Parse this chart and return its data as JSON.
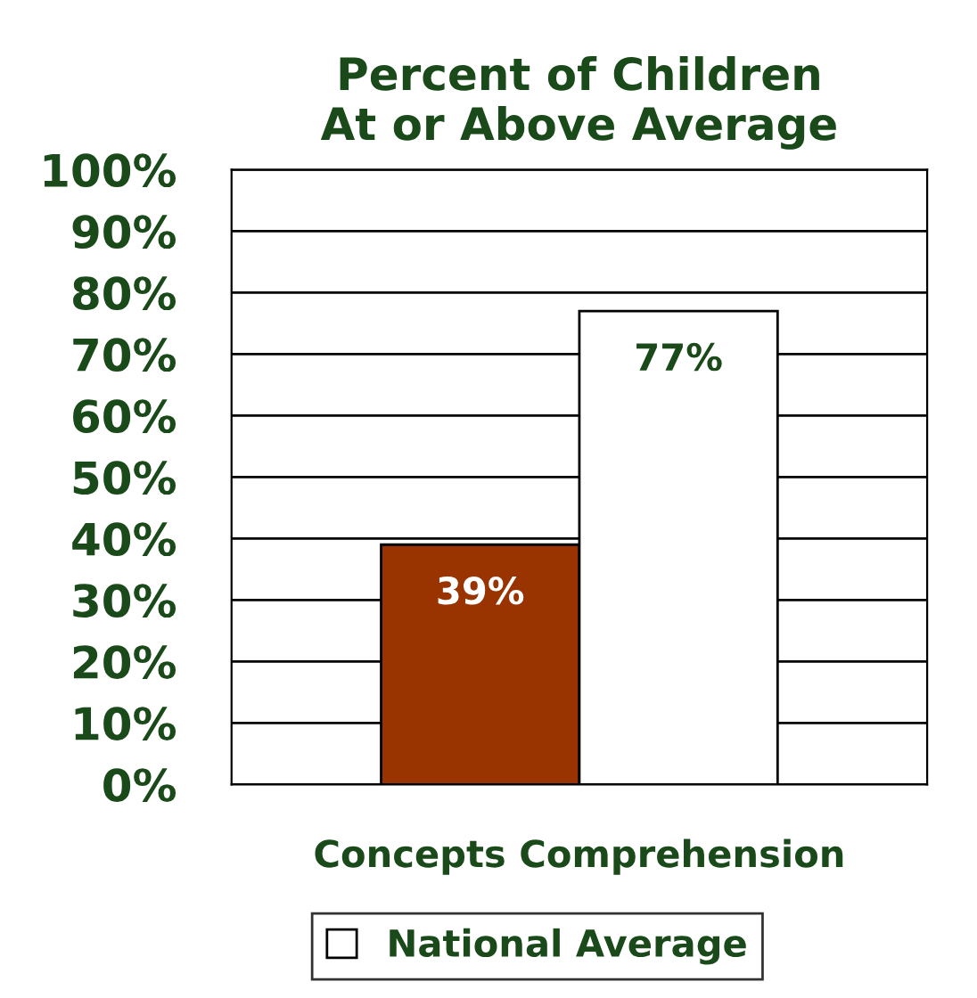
{
  "chart_data": {
    "type": "bar",
    "title": "Percent of Children\nAt or Above Average",
    "categories": [
      "Concepts Comprehension"
    ],
    "series": [
      {
        "color": "#993300",
        "values": [
          39
        ],
        "value_labels": [
          "39%"
        ]
      },
      {
        "name": "National Average",
        "color": "#ffffff",
        "values": [
          77
        ],
        "value_labels": [
          "77%"
        ]
      }
    ],
    "ylim": [
      0,
      100
    ],
    "yticks": [
      {
        "value": 0,
        "label": "0%"
      },
      {
        "value": 10,
        "label": "10%"
      },
      {
        "value": 20,
        "label": "20%"
      },
      {
        "value": 30,
        "label": "30%"
      },
      {
        "value": 40,
        "label": "40%"
      },
      {
        "value": 50,
        "label": "50%"
      },
      {
        "value": 60,
        "label": "60%"
      },
      {
        "value": 70,
        "label": "70%"
      },
      {
        "value": 80,
        "label": "80%"
      },
      {
        "value": 90,
        "label": "90%"
      },
      {
        "value": 100,
        "label": "100%"
      }
    ],
    "grid": "y",
    "legend": "bottom"
  }
}
